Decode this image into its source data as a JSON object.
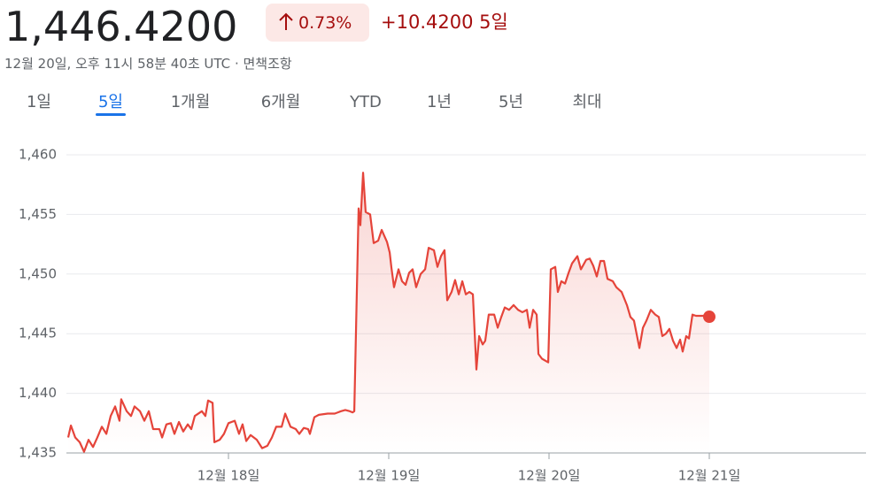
{
  "header": {
    "price": "1,446.4200",
    "change_percent": "0.73%",
    "change": "+10.4200",
    "period": "5일",
    "timestamp": "12월 20일, 오후 11시 58분 40초 UTC",
    "separator": "·",
    "disclaimer": "면책조항"
  },
  "tabs": [
    "1일",
    "5일",
    "1개월",
    "6개월",
    "YTD",
    "1년",
    "5년",
    "최대"
  ],
  "active_tab": 1,
  "chart_data": {
    "type": "line",
    "color": "#e5443a",
    "grid": true,
    "xlim": [
      17,
      22
    ],
    "xticks": [
      {
        "value": 18,
        "label": "12월 18일"
      },
      {
        "value": 19,
        "label": "12월 19일"
      },
      {
        "value": 20,
        "label": "12월 20일"
      },
      {
        "value": 21,
        "label": "12월 21일"
      }
    ],
    "ylim": [
      1435,
      1460
    ],
    "yticks": [
      {
        "value": 1435,
        "label": "1,435"
      },
      {
        "value": 1440,
        "label": "1,440"
      },
      {
        "value": 1445,
        "label": "1,445"
      },
      {
        "value": 1450,
        "label": "1,450"
      },
      {
        "value": 1455,
        "label": "1,455"
      },
      {
        "value": 1460,
        "label": "1,460"
      }
    ],
    "x": [
      17.0,
      17.017,
      17.044,
      17.072,
      17.099,
      17.127,
      17.155,
      17.182,
      17.21,
      17.238,
      17.265,
      17.293,
      17.32,
      17.331,
      17.365,
      17.392,
      17.414,
      17.448,
      17.475,
      17.503,
      17.53,
      17.569,
      17.586,
      17.613,
      17.641,
      17.663,
      17.691,
      17.718,
      17.746,
      17.768,
      17.79,
      17.834,
      17.856,
      17.873,
      17.901,
      17.912,
      17.945,
      17.972,
      18.0,
      18.039,
      18.066,
      18.088,
      18.111,
      18.138,
      18.177,
      18.21,
      18.243,
      18.271,
      18.298,
      18.332,
      18.354,
      18.387,
      18.42,
      18.442,
      18.47,
      18.497,
      18.508,
      18.536,
      18.564,
      18.619,
      18.663,
      18.702,
      18.729,
      18.757,
      18.774,
      18.785,
      18.812,
      18.823,
      18.84,
      18.856,
      18.884,
      18.906,
      18.934,
      18.956,
      18.989,
      19.006,
      19.017,
      19.033,
      19.061,
      19.083,
      19.105,
      19.127,
      19.149,
      19.171,
      19.199,
      19.227,
      19.249,
      19.282,
      19.304,
      19.326,
      19.348,
      19.365,
      19.392,
      19.414,
      19.437,
      19.459,
      19.481,
      19.503,
      19.525,
      19.547,
      19.564,
      19.586,
      19.602,
      19.624,
      19.658,
      19.68,
      19.702,
      19.724,
      19.751,
      19.779,
      19.807,
      19.834,
      19.862,
      19.879,
      19.901,
      19.923,
      19.934,
      19.956,
      19.995,
      20.011,
      20.039,
      20.055,
      20.077,
      20.1,
      20.122,
      20.144,
      20.177,
      20.199,
      20.232,
      20.254,
      20.276,
      20.298,
      20.321,
      20.343,
      20.365,
      20.398,
      20.42,
      20.453,
      20.486,
      20.508,
      20.53,
      20.564,
      20.586,
      20.608,
      20.635,
      20.663,
      20.685,
      20.707,
      20.729,
      20.751,
      20.774,
      20.796,
      20.818,
      20.834,
      20.856,
      20.873,
      20.895,
      20.917,
      20.939,
      20.961,
      21.0
    ],
    "values": [
      1436.3,
      1437.3,
      1436.3,
      1435.9,
      1435.1,
      1436.1,
      1435.5,
      1436.3,
      1437.2,
      1436.6,
      1438.1,
      1438.9,
      1437.7,
      1439.5,
      1438.5,
      1438.1,
      1438.9,
      1438.5,
      1437.7,
      1438.5,
      1437.0,
      1437.0,
      1436.3,
      1437.4,
      1437.5,
      1436.6,
      1437.6,
      1436.8,
      1437.4,
      1437.0,
      1438.1,
      1438.5,
      1438.1,
      1439.4,
      1439.2,
      1435.9,
      1436.1,
      1436.6,
      1437.5,
      1437.7,
      1436.6,
      1437.4,
      1436.0,
      1436.5,
      1436.1,
      1435.4,
      1435.6,
      1436.3,
      1437.2,
      1437.2,
      1438.3,
      1437.2,
      1437.0,
      1436.6,
      1437.1,
      1437.0,
      1436.6,
      1438.0,
      1438.2,
      1438.3,
      1438.3,
      1438.5,
      1438.6,
      1438.5,
      1438.4,
      1438.5,
      1455.5,
      1454.1,
      1458.5,
      1455.2,
      1455.0,
      1452.6,
      1452.8,
      1453.7,
      1452.7,
      1451.8,
      1450.5,
      1448.9,
      1450.4,
      1449.4,
      1449.1,
      1450.1,
      1450.4,
      1448.9,
      1450.0,
      1450.4,
      1452.2,
      1452.0,
      1450.6,
      1451.5,
      1452.0,
      1447.8,
      1448.5,
      1449.5,
      1448.3,
      1449.4,
      1448.3,
      1448.5,
      1448.3,
      1442.0,
      1444.8,
      1444.1,
      1444.4,
      1446.6,
      1446.6,
      1445.5,
      1446.4,
      1447.2,
      1447.0,
      1447.4,
      1447.0,
      1446.8,
      1447.0,
      1445.5,
      1447.0,
      1446.6,
      1443.3,
      1442.9,
      1442.6,
      1450.4,
      1450.6,
      1448.5,
      1449.4,
      1449.2,
      1450.1,
      1450.9,
      1451.5,
      1450.4,
      1451.2,
      1451.3,
      1450.7,
      1449.8,
      1451.1,
      1451.1,
      1449.6,
      1449.4,
      1448.9,
      1448.5,
      1447.4,
      1446.4,
      1446.1,
      1443.8,
      1445.5,
      1446.1,
      1447.0,
      1446.6,
      1446.4,
      1444.8,
      1445.0,
      1445.4,
      1444.4,
      1443.8,
      1444.5,
      1443.5,
      1444.8,
      1444.6,
      1446.6,
      1446.5,
      1446.5,
      1446.5,
      1446.42
    ]
  }
}
